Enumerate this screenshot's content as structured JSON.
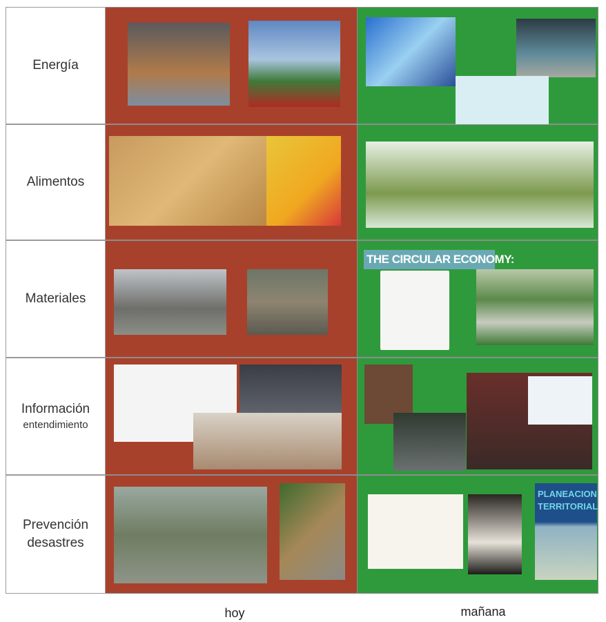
{
  "rows": [
    {
      "lines": [
        "Energía"
      ]
    },
    {
      "lines": [
        "Alimentos"
      ]
    },
    {
      "lines": [
        "Materiales"
      ]
    },
    {
      "lines": [
        "Información",
        "entendimiento"
      ]
    },
    {
      "lines": [
        "Prevención",
        "desastres"
      ]
    }
  ],
  "columns": [
    "hoy",
    "mañana"
  ],
  "image_texts": {
    "circular_economy": "THE CIRCULAR ECONOMY:",
    "planeacion": [
      "PLANEACION",
      "TERRITORIAL"
    ]
  }
}
